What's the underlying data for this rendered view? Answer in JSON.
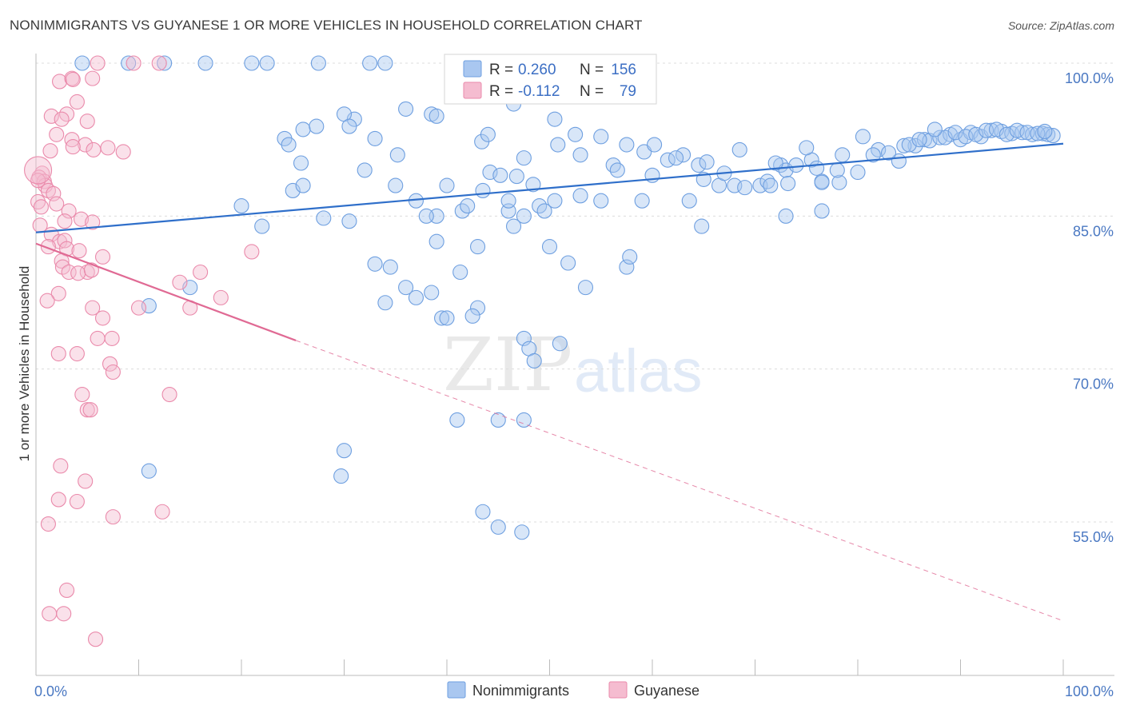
{
  "title": "NONIMMIGRANTS VS GUYANESE 1 OR MORE VEHICLES IN HOUSEHOLD CORRELATION CHART",
  "source": "Source: ZipAtlas.com",
  "colors": {
    "blue": "#6e9fe0",
    "blue_fill": "#a9c7f0",
    "blue_line": "#2f6fca",
    "pink": "#ea8aab",
    "pink_fill": "#f5bcd0",
    "pink_line": "#e06a94",
    "tick": "#4a78c2"
  },
  "chart_data": {
    "type": "scatter",
    "title": "NONIMMIGRANTS VS GUYANESE 1 OR MORE VEHICLES IN HOUSEHOLD CORRELATION CHART",
    "xlabel": "",
    "ylabel": "1 or more Vehicles in Household",
    "xlim": [
      0,
      100
    ],
    "ylim": [
      40,
      101.5
    ],
    "x_tick_labels": [
      {
        "value": 0,
        "label": "0.0%"
      },
      {
        "value": 100,
        "label": "100.0%"
      }
    ],
    "y_tick_labels": [
      {
        "value": 100,
        "label": "100.0%"
      },
      {
        "value": 85,
        "label": "85.0%"
      },
      {
        "value": 70,
        "label": "70.0%"
      },
      {
        "value": 55,
        "label": "55.0%"
      }
    ],
    "watermark": {
      "zip": "ZIP",
      "atlas": "atlas"
    },
    "legend": [
      {
        "name": "Nonimmigrants",
        "r_label": "R =",
        "r": "0.260",
        "n_label": "N =",
        "n": "156"
      },
      {
        "name": "Guyanese",
        "r_label": "R =",
        "r": "-0.112",
        "n_label": "N =",
        "n": "79"
      }
    ],
    "series": [
      {
        "name": "Nonimmigrants",
        "trend": {
          "x0": 0,
          "y0": 83.4,
          "x1": 100,
          "y1": 92.1
        },
        "points": [
          [
            4.5,
            100
          ],
          [
            9,
            100
          ],
          [
            12.5,
            100
          ],
          [
            16.5,
            100
          ],
          [
            21,
            100
          ],
          [
            22.5,
            100
          ],
          [
            27.5,
            100
          ],
          [
            32.5,
            100
          ],
          [
            34,
            100
          ],
          [
            36,
            95.5
          ],
          [
            38.5,
            95
          ],
          [
            39,
            94.8
          ],
          [
            46.5,
            96
          ],
          [
            50.5,
            94.5
          ],
          [
            31,
            94.5
          ],
          [
            30,
            95
          ],
          [
            30.5,
            93.8
          ],
          [
            33,
            92.6
          ],
          [
            26,
            93.5
          ],
          [
            27.3,
            93.8
          ],
          [
            24.2,
            92.6
          ],
          [
            24.6,
            92
          ],
          [
            43.4,
            92.3
          ],
          [
            44,
            93
          ],
          [
            52.5,
            93
          ],
          [
            50.8,
            92
          ],
          [
            47.5,
            90.7
          ],
          [
            35.2,
            91
          ],
          [
            25.8,
            90.2
          ],
          [
            35,
            88
          ],
          [
            40,
            88
          ],
          [
            44.2,
            89.3
          ],
          [
            45.2,
            89
          ],
          [
            46.8,
            88.9
          ],
          [
            48.4,
            88.1
          ],
          [
            56.2,
            90
          ],
          [
            56.6,
            89.5
          ],
          [
            60,
            89
          ],
          [
            59.2,
            91.3
          ],
          [
            61.5,
            90.5
          ],
          [
            63,
            91
          ],
          [
            64.5,
            90
          ],
          [
            65,
            88.6
          ],
          [
            66.5,
            88
          ],
          [
            67,
            89.2
          ],
          [
            68,
            88
          ],
          [
            69,
            87.8
          ],
          [
            70.5,
            88
          ],
          [
            71.2,
            88.4
          ],
          [
            71.5,
            88
          ],
          [
            72.5,
            90
          ],
          [
            73,
            89.5
          ],
          [
            74,
            90
          ],
          [
            75.5,
            90.5
          ],
          [
            76,
            89.7
          ],
          [
            76.5,
            88.4
          ],
          [
            78.2,
            88.3
          ],
          [
            82,
            91.5
          ],
          [
            84,
            90.4
          ],
          [
            85.6,
            91.9
          ],
          [
            86.5,
            92.5
          ],
          [
            87,
            92.4
          ],
          [
            88,
            92.7
          ],
          [
            89,
            93
          ],
          [
            90,
            92.5
          ],
          [
            91,
            93.2
          ],
          [
            92,
            92.8
          ],
          [
            93,
            93.4
          ],
          [
            94,
            93.3
          ],
          [
            95,
            93.1
          ],
          [
            96,
            93.2
          ],
          [
            97,
            93
          ],
          [
            98,
            93.1
          ],
          [
            98.5,
            93
          ],
          [
            99,
            92.9
          ],
          [
            76.5,
            88.3
          ],
          [
            73.2,
            88.2
          ],
          [
            78,
            89.5
          ],
          [
            80,
            89.3
          ],
          [
            81.5,
            91
          ],
          [
            83,
            91.2
          ],
          [
            84.5,
            91.9
          ],
          [
            85,
            92
          ],
          [
            86,
            92.5
          ],
          [
            88.5,
            92.7
          ],
          [
            89.5,
            93.2
          ],
          [
            90.5,
            92.8
          ],
          [
            91.5,
            93
          ],
          [
            92.5,
            93.4
          ],
          [
            93.5,
            93.5
          ],
          [
            94.5,
            93
          ],
          [
            95.5,
            93.4
          ],
          [
            96.5,
            93.2
          ],
          [
            97.5,
            93.1
          ],
          [
            98.2,
            93.3
          ],
          [
            87.5,
            93.5
          ],
          [
            80.5,
            92.8
          ],
          [
            78.5,
            91
          ],
          [
            75,
            91.7
          ],
          [
            72,
            90.2
          ],
          [
            68.5,
            91.5
          ],
          [
            65.3,
            90.3
          ],
          [
            62.3,
            90.7
          ],
          [
            60.2,
            92
          ],
          [
            57.5,
            92
          ],
          [
            55,
            92.8
          ],
          [
            53,
            91
          ],
          [
            20,
            86
          ],
          [
            28,
            84.8
          ],
          [
            22,
            84
          ],
          [
            25,
            87.5
          ],
          [
            26,
            88
          ],
          [
            32,
            89.5
          ],
          [
            37,
            86.5
          ],
          [
            39,
            85
          ],
          [
            41.5,
            85.5
          ],
          [
            42,
            86
          ],
          [
            43.5,
            87.5
          ],
          [
            46,
            85.5
          ],
          [
            46,
            86.5
          ],
          [
            49,
            86
          ],
          [
            49.5,
            85.5
          ],
          [
            50.5,
            86.5
          ],
          [
            53,
            87
          ],
          [
            55,
            86.5
          ],
          [
            59,
            86.5
          ],
          [
            63.6,
            86.5
          ],
          [
            64.8,
            84
          ],
          [
            73,
            85
          ],
          [
            76.5,
            85.5
          ],
          [
            38,
            85
          ],
          [
            39,
            82.5
          ],
          [
            43,
            82
          ],
          [
            46.5,
            84
          ],
          [
            47.5,
            85
          ],
          [
            50,
            82
          ],
          [
            57.5,
            80
          ],
          [
            30.5,
            84.5
          ],
          [
            34.5,
            80
          ],
          [
            33,
            80.3
          ],
          [
            41.3,
            79.5
          ],
          [
            53.5,
            78
          ],
          [
            57.8,
            81
          ],
          [
            36,
            78
          ],
          [
            37,
            77
          ],
          [
            39.5,
            75
          ],
          [
            43,
            76
          ],
          [
            47.5,
            73
          ],
          [
            51,
            72.5
          ],
          [
            48,
            72
          ],
          [
            48.5,
            70.8
          ],
          [
            45,
            65
          ],
          [
            47.5,
            65
          ],
          [
            41,
            65
          ],
          [
            30,
            62
          ],
          [
            29.7,
            59.5
          ],
          [
            47.3,
            54
          ],
          [
            45,
            54.5
          ],
          [
            43.5,
            56
          ],
          [
            11,
            60
          ],
          [
            15,
            78
          ],
          [
            11,
            76.2
          ],
          [
            40,
            75
          ],
          [
            42.5,
            75.2
          ],
          [
            38.5,
            77.5
          ],
          [
            34,
            76.5
          ],
          [
            51.8,
            80.4
          ]
        ]
      },
      {
        "name": "Guyanese",
        "trend": {
          "x0": 0,
          "y0": 82.3,
          "x1": 25.3,
          "y1": 72.8,
          "ext_x1": 100,
          "ext_y1": 45.3
        },
        "points": [
          [
            6,
            100
          ],
          [
            9.5,
            100
          ],
          [
            12,
            100
          ],
          [
            2.3,
            98.2
          ],
          [
            3.5,
            98.5
          ],
          [
            3.6,
            98.4
          ],
          [
            5.5,
            98.5
          ],
          [
            4,
            96.2
          ],
          [
            3,
            95
          ],
          [
            1.5,
            94.8
          ],
          [
            2.5,
            94.5
          ],
          [
            5,
            94.3
          ],
          [
            2,
            93
          ],
          [
            3.5,
            92.5
          ],
          [
            4.8,
            92
          ],
          [
            3.6,
            91.8
          ],
          [
            1.4,
            91.4
          ],
          [
            5.6,
            91.5
          ],
          [
            7,
            91.7
          ],
          [
            8.5,
            91.3
          ],
          [
            0.6,
            89.2
          ],
          [
            0.3,
            88.8
          ],
          [
            0.8,
            88.4
          ],
          [
            0.9,
            88
          ],
          [
            1.2,
            87.5
          ],
          [
            1.7,
            87.2
          ],
          [
            2,
            86.2
          ],
          [
            0.2,
            86.4
          ],
          [
            0.5,
            85.9
          ],
          [
            3.2,
            85.5
          ],
          [
            2.8,
            84.5
          ],
          [
            4.4,
            84.7
          ],
          [
            5.5,
            84.4
          ],
          [
            0.4,
            84.1
          ],
          [
            1.5,
            83.2
          ],
          [
            2.3,
            82.5
          ],
          [
            2.8,
            82.6
          ],
          [
            1.2,
            82
          ],
          [
            3,
            81.8
          ],
          [
            2.5,
            80.6
          ],
          [
            4.2,
            81.6
          ],
          [
            2.6,
            80
          ],
          [
            3.2,
            79.5
          ],
          [
            6.5,
            81
          ],
          [
            5,
            79.5
          ],
          [
            4.1,
            79.4
          ],
          [
            2.2,
            77.4
          ],
          [
            1.1,
            76.7
          ],
          [
            5.4,
            79.7
          ],
          [
            10,
            76
          ],
          [
            5.5,
            76
          ],
          [
            6.5,
            75
          ],
          [
            7.4,
            73
          ],
          [
            6,
            73
          ],
          [
            4,
            71.5
          ],
          [
            2.2,
            71.5
          ],
          [
            7.2,
            70.5
          ],
          [
            7.5,
            69.7
          ],
          [
            14,
            78.5
          ],
          [
            15,
            76
          ],
          [
            16,
            79.5
          ],
          [
            18,
            77
          ],
          [
            21,
            81.5
          ],
          [
            13,
            67.5
          ],
          [
            4.5,
            67.5
          ],
          [
            5,
            66
          ],
          [
            5.3,
            66
          ],
          [
            2.4,
            60.5
          ],
          [
            4,
            57
          ],
          [
            4.8,
            59
          ],
          [
            2.2,
            57.2
          ],
          [
            1.2,
            54.8
          ],
          [
            7.5,
            55.5
          ],
          [
            12.3,
            56
          ],
          [
            3,
            48.3
          ],
          [
            1.3,
            46
          ],
          [
            2.7,
            46
          ],
          [
            5.8,
            43.5
          ],
          [
            0.2,
            88.5
          ]
        ]
      }
    ]
  }
}
